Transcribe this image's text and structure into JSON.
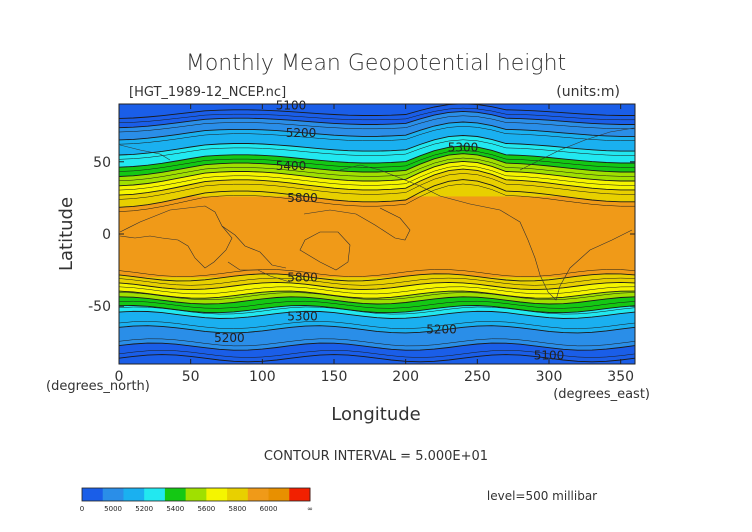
{
  "chart_data": {
    "type": "heatmap",
    "title": "Monthly Mean Geopotential height",
    "subtitle_left": "[HGT_1989-12_NCEP.nc]",
    "units": "(units:m)",
    "xlabel": "Longitude",
    "ylabel": "Latitude",
    "x_unit": "(degrees_east)",
    "y_unit": "(degrees_north)",
    "xlim": [
      0,
      360
    ],
    "ylim": [
      -90,
      90
    ],
    "xticks": [
      0,
      50,
      100,
      150,
      200,
      250,
      300,
      350
    ],
    "yticks": [
      -50,
      0,
      50
    ],
    "contour_interval": "CONTOUR INTERVAL = 5.000E+01",
    "level": "level=500 millibar",
    "contour_labels": [
      {
        "text": "5100",
        "lon": 120,
        "lat": 89
      },
      {
        "text": "5200",
        "lon": 127,
        "lat": 70
      },
      {
        "text": "5300",
        "lon": 240,
        "lat": 60
      },
      {
        "text": "5400",
        "lon": 120,
        "lat": 47
      },
      {
        "text": "5800",
        "lon": 128,
        "lat": 25
      },
      {
        "text": "5800",
        "lon": 128,
        "lat": -30
      },
      {
        "text": "5300",
        "lon": 128,
        "lat": -57
      },
      {
        "text": "5200",
        "lon": 77,
        "lat": -72
      },
      {
        "text": "5200",
        "lon": 225,
        "lat": -66
      },
      {
        "text": "5100",
        "lon": 300,
        "lat": -84
      }
    ],
    "colorbar": {
      "ticks": [
        "0",
        "5000",
        "5200",
        "5400",
        "5600",
        "5800",
        "6000",
        "∞"
      ],
      "colors": [
        "#1a5ee8",
        "#2a8ee8",
        "#1ab0f0",
        "#22e8f0",
        "#14c814",
        "#a0e000",
        "#f5f500",
        "#e8d000",
        "#f09a18",
        "#e89000",
        "#f22000"
      ]
    },
    "band_colors": {
      "c5000": "#1a5ee8",
      "c5100": "#2a8ee8",
      "c5200": "#1ab0f0",
      "c5300": "#22e8f0",
      "c5400": "#14c814",
      "c5500": "#a0e000",
      "c5600": "#f5f500",
      "c5700": "#e8d000",
      "c5800": "#f09a18"
    }
  }
}
